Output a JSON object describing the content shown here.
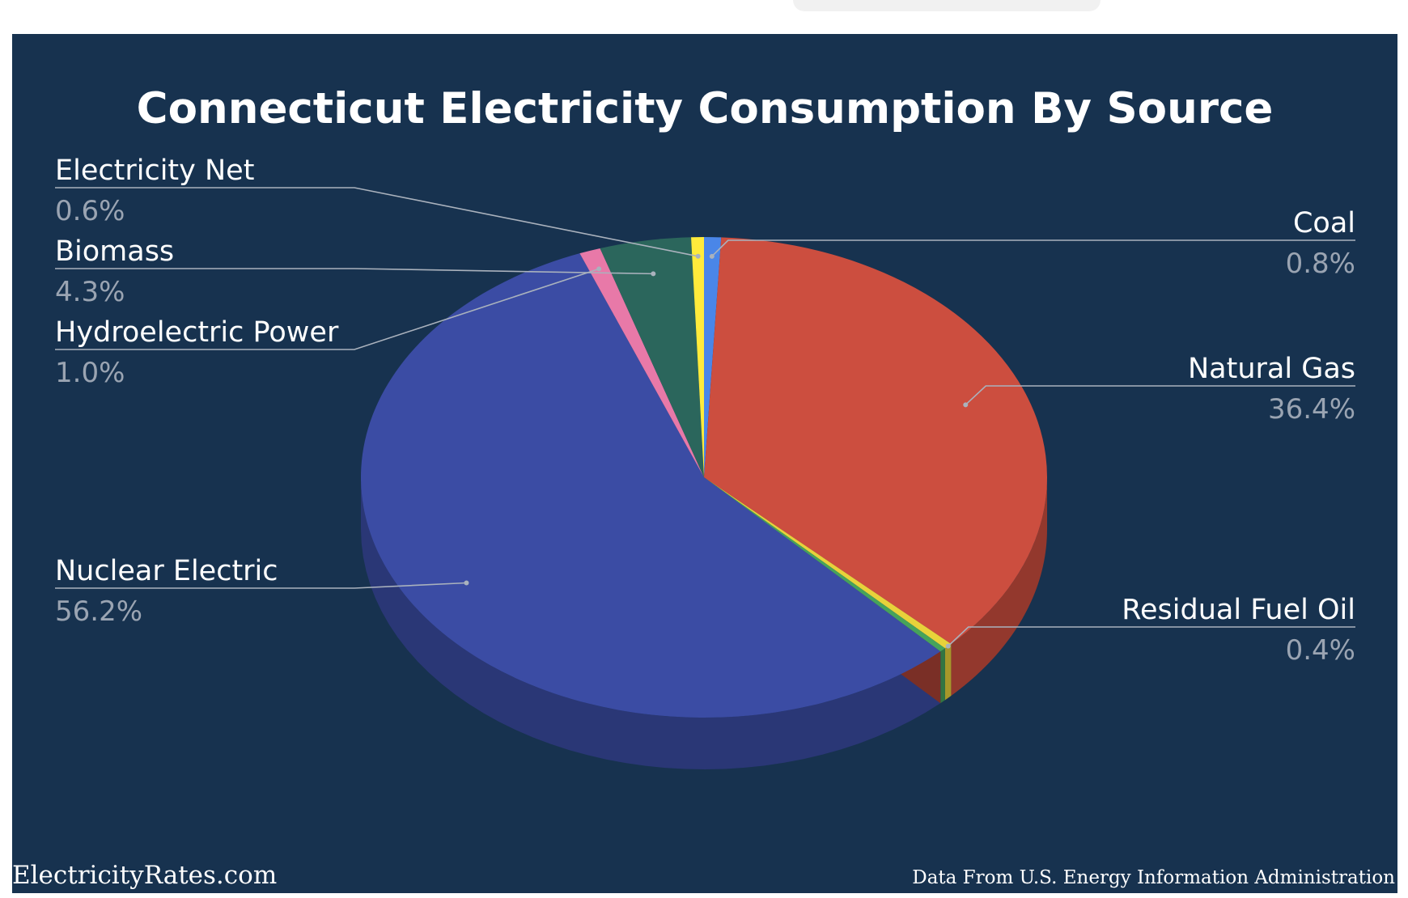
{
  "chart_data": {
    "type": "pie",
    "title": "Connecticut Electricity Consumption By Source",
    "slices": [
      {
        "label": "Coal",
        "percent_label": "0.8%",
        "value": 0.8,
        "color": "#4a86e8"
      },
      {
        "label": "Natural Gas",
        "percent_label": "36.4%",
        "value": 36.4,
        "color": "#cc4e3f"
      },
      {
        "label": "Residual Fuel Oil",
        "percent_label": "0.4%",
        "value": 0.4,
        "color": "#e8d23a"
      },
      {
        "label": "",
        "percent_label": "",
        "value": 0.3,
        "color": "#46a35b"
      },
      {
        "label": "Nuclear Electric",
        "percent_label": "56.2%",
        "value": 56.2,
        "color": "#3b4ca4"
      },
      {
        "label": "Hydroelectric Power",
        "percent_label": "1.0%",
        "value": 1.0,
        "color": "#e879a8"
      },
      {
        "label": "Biomass",
        "percent_label": "4.3%",
        "value": 4.3,
        "color": "#2b665c"
      },
      {
        "label": "Electricity Net",
        "percent_label": "0.6%",
        "value": 0.6,
        "color": "#ffeb3b"
      }
    ]
  },
  "colors": {
    "background": "#17324f",
    "title": "#ffffff",
    "percent": "#9aa4b2"
  },
  "footer": {
    "site": "ElectricityRates.com",
    "source": "Data From U.S. Energy Information Administration"
  }
}
